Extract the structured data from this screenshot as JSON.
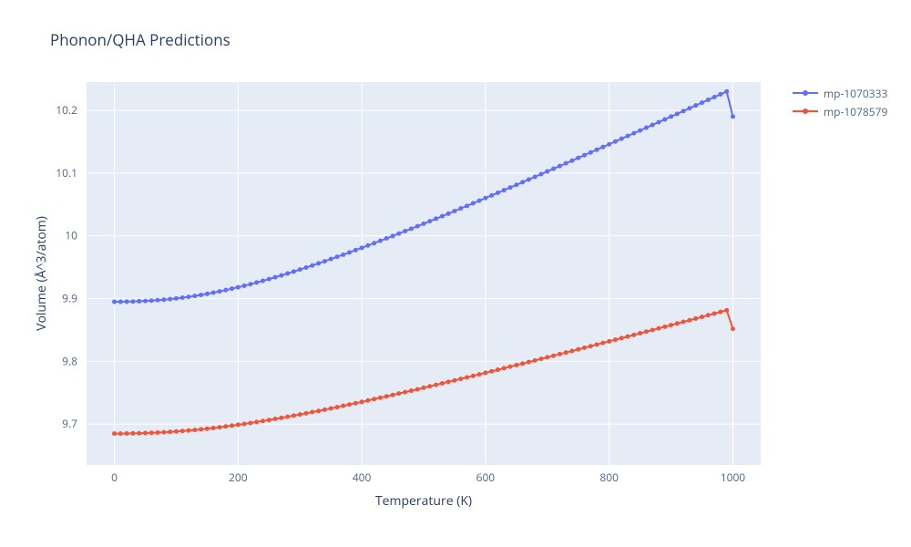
{
  "chart": {
    "title": "Phonon/QHA Predictions",
    "title_fontsize": 17,
    "type": "line",
    "background_color": "#ffffff",
    "plot_bgcolor": "#e5ecf6",
    "grid_color": "#ffffff",
    "tick_font_color": "#506784",
    "axis_title_color": "#2a3f5f",
    "xlabel": "Temperature (K)",
    "ylabel": "Volume (Å^3/atom)",
    "label_fontsize": 14,
    "tick_fontsize": 12,
    "xlim": [
      -45,
      1045
    ],
    "ylim": [
      9.635,
      10.245
    ],
    "xticks": [
      0,
      200,
      400,
      600,
      800,
      1000
    ],
    "yticks": [
      9.7,
      9.8,
      9.9,
      10,
      10.1,
      10.2
    ],
    "line_width": 2,
    "marker_size": 5,
    "marker_style": "circle",
    "legend_position": "right-top",
    "series": [
      {
        "name": "mp-1070333",
        "color": "#636efa",
        "x": [
          0,
          10,
          20,
          30,
          40,
          50,
          60,
          70,
          80,
          90,
          100,
          110,
          120,
          130,
          140,
          150,
          160,
          170,
          180,
          190,
          200,
          210,
          220,
          230,
          240,
          250,
          260,
          270,
          280,
          290,
          300,
          310,
          320,
          330,
          340,
          350,
          360,
          370,
          380,
          390,
          400,
          410,
          420,
          430,
          440,
          450,
          460,
          470,
          480,
          490,
          500,
          510,
          520,
          530,
          540,
          550,
          560,
          570,
          580,
          590,
          600,
          610,
          620,
          630,
          640,
          650,
          660,
          670,
          680,
          690,
          700,
          710,
          720,
          730,
          740,
          750,
          760,
          770,
          780,
          790,
          800,
          810,
          820,
          830,
          840,
          850,
          860,
          870,
          880,
          890,
          900,
          910,
          920,
          930,
          940,
          950,
          960,
          970,
          980,
          990,
          1000
        ],
        "y": [
          9.895,
          9.895,
          9.8952,
          9.8954,
          9.8958,
          9.8962,
          9.8968,
          9.8975,
          9.8983,
          9.8992,
          9.9003,
          9.9015,
          9.9028,
          9.9043,
          9.9059,
          9.9076,
          9.9095,
          9.9115,
          9.9136,
          9.9158,
          9.9181,
          9.9205,
          9.923,
          9.9256,
          9.9283,
          9.9311,
          9.934,
          9.937,
          9.94,
          9.9431,
          9.9463,
          9.9495,
          9.9528,
          9.9561,
          9.9595,
          9.963,
          9.9665,
          9.97,
          9.9736,
          9.9772,
          9.9809,
          9.9846,
          9.9883,
          9.9921,
          9.9959,
          9.9997,
          10.0036,
          10.0075,
          10.0114,
          10.0153,
          10.0193,
          10.0233,
          10.0273,
          10.0313,
          10.0354,
          10.0395,
          10.0436,
          10.0477,
          10.0518,
          10.056,
          10.0602,
          10.0644,
          10.0686,
          10.0728,
          10.077,
          10.0812,
          10.0855,
          10.0898,
          10.094,
          10.0983,
          10.1026,
          10.1069,
          10.1112,
          10.1155,
          10.1198,
          10.1242,
          10.1285,
          10.1328,
          10.1372,
          10.1416,
          10.1459,
          10.1503,
          10.1547,
          10.1591,
          10.1635,
          10.1679,
          10.1723,
          10.1767,
          10.1811,
          10.1855,
          10.19,
          10.1944,
          10.1988,
          10.2033,
          10.2077,
          10.2122,
          10.2166,
          10.2211,
          10.2255,
          10.23,
          10.19
        ]
      },
      {
        "name": "mp-1078579",
        "color": "#ef553b",
        "x": [
          0,
          10,
          20,
          30,
          40,
          50,
          60,
          70,
          80,
          90,
          100,
          110,
          120,
          130,
          140,
          150,
          160,
          170,
          180,
          190,
          200,
          210,
          220,
          230,
          240,
          250,
          260,
          270,
          280,
          290,
          300,
          310,
          320,
          330,
          340,
          350,
          360,
          370,
          380,
          390,
          400,
          410,
          420,
          430,
          440,
          450,
          460,
          470,
          480,
          490,
          500,
          510,
          520,
          530,
          540,
          550,
          560,
          570,
          580,
          590,
          600,
          610,
          620,
          630,
          640,
          650,
          660,
          670,
          680,
          690,
          700,
          710,
          720,
          730,
          740,
          750,
          760,
          770,
          780,
          790,
          800,
          810,
          820,
          830,
          840,
          850,
          860,
          870,
          880,
          890,
          900,
          910,
          920,
          930,
          940,
          950,
          960,
          970,
          980,
          990,
          1000
        ],
        "y": [
          9.685,
          9.685,
          9.6851,
          9.6853,
          9.6855,
          9.6858,
          9.6862,
          9.6866,
          9.6871,
          9.6877,
          9.6884,
          9.6891,
          9.6899,
          9.6908,
          9.6918,
          9.6928,
          9.6939,
          9.6951,
          9.6963,
          9.6976,
          9.699,
          9.7004,
          9.7019,
          9.7034,
          9.705,
          9.7066,
          9.7083,
          9.71,
          9.7118,
          9.7136,
          9.7154,
          9.7173,
          9.7192,
          9.7211,
          9.7231,
          9.7251,
          9.7271,
          9.7292,
          9.7313,
          9.7334,
          9.7355,
          9.7377,
          9.7399,
          9.7421,
          9.7443,
          9.7465,
          9.7488,
          9.751,
          9.7533,
          9.7556,
          9.758,
          9.7603,
          9.7626,
          9.765,
          9.7673,
          9.7697,
          9.7721,
          9.7745,
          9.7769,
          9.7793,
          9.7818,
          9.7842,
          9.7867,
          9.7891,
          9.7916,
          9.7941,
          9.7965,
          9.799,
          9.8015,
          9.804,
          9.8065,
          9.809,
          9.8116,
          9.8141,
          9.8166,
          9.8192,
          9.8217,
          9.8242,
          9.8268,
          9.8294,
          9.8319,
          9.8345,
          9.8371,
          9.8396,
          9.8422,
          9.8448,
          9.8474,
          9.85,
          9.8526,
          9.8552,
          9.8578,
          9.8604,
          9.863,
          9.8656,
          9.8682,
          9.8709,
          9.8735,
          9.8761,
          9.8788,
          9.8814,
          9.852
        ]
      }
    ]
  }
}
